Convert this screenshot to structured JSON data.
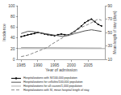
{
  "chart_data": {
    "type": "line",
    "xlabel": "Year of admission",
    "ylabel": "Incidence",
    "y2label": "Mean length of stay (days)",
    "x": [
      1985,
      1986,
      1987,
      1988,
      1989,
      1990,
      1991,
      1992,
      1993,
      1994,
      1995,
      1996,
      1997,
      1998,
      1999,
      2000,
      2001,
      2002,
      2003,
      2004,
      2005,
      2006,
      2007,
      2008,
      2009
    ],
    "series": [
      {
        "name": "Hospitalizations with SI/100,000 population",
        "color": "#000000",
        "marker": "circle",
        "values": [
          42,
          44,
          46,
          47,
          48,
          50,
          49,
          47,
          46,
          45,
          44,
          46,
          47,
          46,
          45,
          48,
          52,
          57,
          62,
          68,
          72,
          75,
          70,
          65,
          62
        ]
      },
      {
        "name": "Hospitalizations for cellulitis/100,000 population",
        "color": "#555555",
        "values": [
          48,
          50,
          52,
          52,
          51,
          50,
          49,
          48,
          46,
          45,
          44,
          43,
          43,
          43,
          44,
          46,
          48,
          50,
          52,
          53,
          54,
          55,
          54,
          53,
          52
        ]
      },
      {
        "name": "Hospitalizations for all causes/1,000 population",
        "color": "#aaaaaa",
        "values": [
          22,
          22,
          22,
          21,
          21,
          21,
          21,
          21,
          21,
          21,
          21,
          21,
          21,
          21,
          21,
          21,
          21,
          21,
          21,
          21,
          21,
          21,
          21,
          21,
          21
        ]
      },
      {
        "name": "Hospitalizations with SI, mean hospital length of stay",
        "color": "#888888",
        "axis": "y2",
        "line_style": "dashed",
        "values": [
          14,
          15,
          16,
          18,
          20,
          22,
          24,
          26,
          28,
          32,
          35,
          38,
          42,
          44,
          46,
          48,
          52,
          55,
          58,
          60,
          62,
          65,
          68,
          70,
          68
        ]
      }
    ],
    "xlim": [
      1984,
      2010
    ],
    "xticks": [
      1985,
      1990,
      1995,
      2000,
      2005
    ],
    "ylim": [
      0,
      100
    ],
    "yticks": [
      0,
      20,
      40,
      60,
      80,
      100
    ],
    "y2lim": [
      10,
      90
    ],
    "y2ticks": [
      10,
      30,
      50,
      70,
      90
    ],
    "reference_line": {
      "y": 20,
      "color": "#808080"
    },
    "grid": false,
    "legend": "bottom"
  }
}
